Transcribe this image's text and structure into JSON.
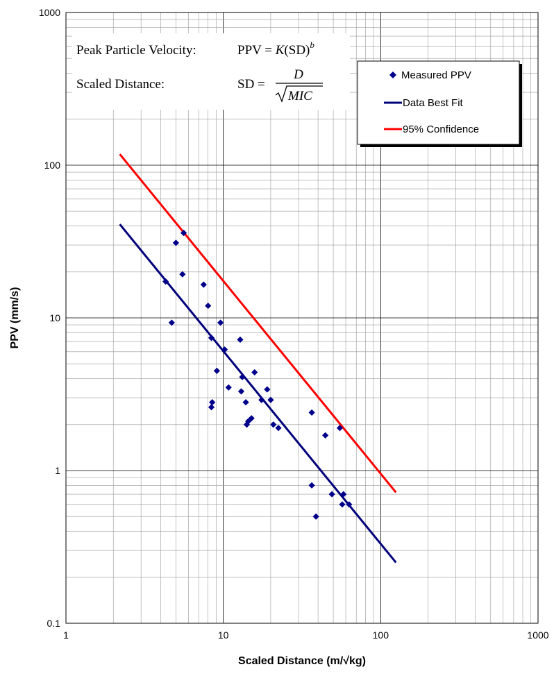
{
  "chart_data": {
    "type": "scatter",
    "xlabel": "Scaled Distance (m/√kg)",
    "ylabel": "PPV (mm/s)",
    "x_scale": "log",
    "y_scale": "log",
    "xlim": [
      1,
      1000
    ],
    "ylim": [
      0.1,
      1000
    ],
    "x_ticks": [
      "1",
      "10",
      "100",
      "1000"
    ],
    "y_ticks": [
      "0.1",
      "1",
      "10",
      "100",
      "1000"
    ],
    "grid": "on (major and minor)",
    "legend_placement": "top-right",
    "annotation": {
      "line1_label": "Peak Particle Velocity:",
      "line1_lhs": "PPV = ",
      "line1_k": "K",
      "line1_rest": "(SD)",
      "line1_exp": "b",
      "line2_label": "Scaled Distance:",
      "line2_lhs": "SD = ",
      "line2_num": "D",
      "line2_den": "MIC"
    },
    "series": [
      {
        "name": "Measured PPV",
        "kind": "scatter",
        "color": "#00008B",
        "marker": "diamond",
        "points": [
          [
            4.3,
            17.3
          ],
          [
            4.7,
            9.3
          ],
          [
            5.0,
            31.0
          ],
          [
            5.5,
            19.3
          ],
          [
            5.6,
            36.0
          ],
          [
            7.5,
            16.5
          ],
          [
            8.0,
            12.0
          ],
          [
            8.4,
            7.4
          ],
          [
            8.5,
            2.8
          ],
          [
            8.4,
            2.6
          ],
          [
            9.1,
            4.5
          ],
          [
            9.6,
            9.3
          ],
          [
            10.2,
            6.2
          ],
          [
            10.8,
            3.5
          ],
          [
            12.8,
            7.2
          ],
          [
            13.0,
            3.3
          ],
          [
            13.2,
            4.1
          ],
          [
            13.9,
            2.8
          ],
          [
            14.1,
            2.0
          ],
          [
            14.4,
            2.1
          ],
          [
            15.1,
            2.2
          ],
          [
            15.8,
            4.4
          ],
          [
            17.5,
            2.9
          ],
          [
            19.0,
            3.4
          ],
          [
            20.0,
            2.9
          ],
          [
            20.8,
            2.0
          ],
          [
            22.4,
            1.9
          ],
          [
            36.5,
            2.4
          ],
          [
            36.5,
            0.8
          ],
          [
            38.8,
            0.5
          ],
          [
            44.5,
            1.7
          ],
          [
            49.0,
            0.7
          ],
          [
            55.0,
            1.9
          ],
          [
            57.0,
            0.6
          ],
          [
            58.0,
            0.7
          ],
          [
            63.0,
            0.6
          ]
        ]
      },
      {
        "name": "Data Best Fit",
        "kind": "line",
        "color": "#00007B",
        "points": [
          [
            2.2,
            41.0
          ],
          [
            125.0,
            0.25
          ]
        ]
      },
      {
        "name": "95% Confidence",
        "kind": "line",
        "color": "#FF0000",
        "points": [
          [
            2.2,
            118.0
          ],
          [
            125.0,
            0.72
          ]
        ]
      }
    ]
  }
}
